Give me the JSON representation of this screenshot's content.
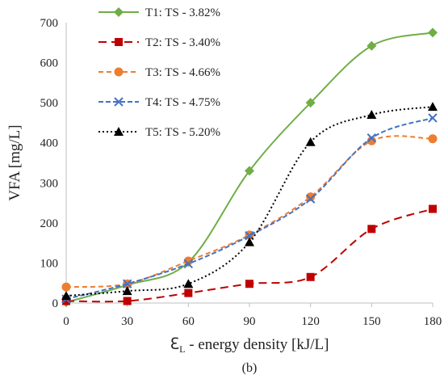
{
  "chart_data": {
    "type": "line",
    "panel_label": "(b)",
    "xlabel_main": "ℇ",
    "xlabel_sub": "L",
    "xlabel_rest": " - energy density [kJ/L]",
    "ylabel": "VFA [mg/L]",
    "xlim": [
      0,
      180
    ],
    "ylim": [
      0,
      700
    ],
    "x_ticks": [
      0,
      30,
      60,
      90,
      120,
      150,
      180
    ],
    "y_ticks": [
      0,
      100,
      200,
      300,
      400,
      500,
      600,
      700
    ],
    "grid": false,
    "legend_position": "top-left",
    "x": [
      0,
      30,
      60,
      90,
      120,
      150,
      180
    ],
    "series": [
      {
        "name": "T1: TS - 3.82%",
        "values": [
          2,
          45,
          102,
          330,
          500,
          642,
          675
        ],
        "color": "#70AD47",
        "dash": "",
        "marker": "diamond"
      },
      {
        "name": "T2: TS - 3.40%",
        "values": [
          5,
          5,
          25,
          48,
          65,
          185,
          235
        ],
        "color": "#C00000",
        "dash": "10,6",
        "marker": "square"
      },
      {
        "name": "T3: TS - 4.66%",
        "values": [
          40,
          48,
          105,
          170,
          265,
          405,
          410
        ],
        "color": "#ED7D31",
        "dash": "6,4",
        "marker": "circle"
      },
      {
        "name": "T4: TS - 4.75%",
        "values": [
          10,
          48,
          98,
          168,
          260,
          412,
          462
        ],
        "color": "#4472C4",
        "dash": "6,3",
        "marker": "x"
      },
      {
        "name": "T5: TS - 5.20%",
        "values": [
          18,
          30,
          48,
          152,
          402,
          470,
          490
        ],
        "color": "#000000",
        "dash": "2,3",
        "marker": "triangle"
      }
    ]
  }
}
